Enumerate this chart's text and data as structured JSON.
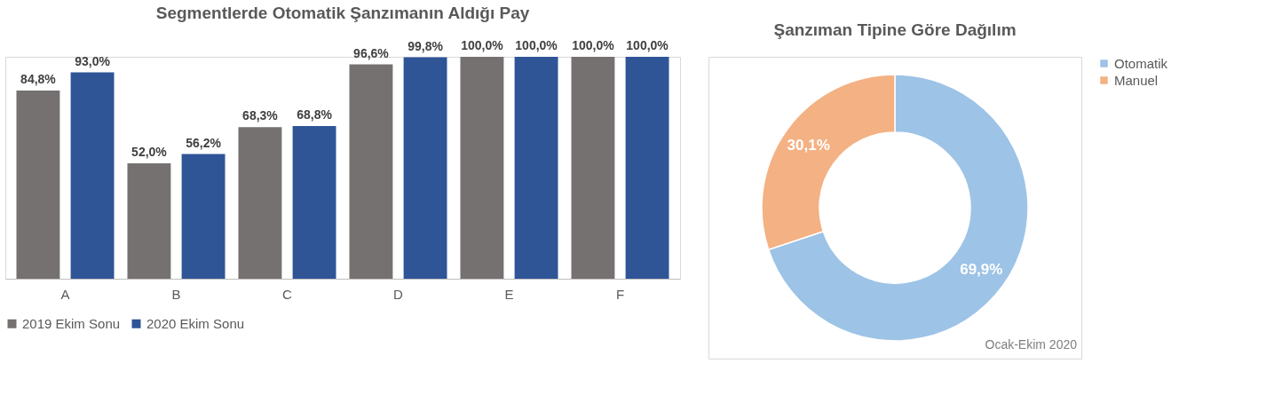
{
  "chart_data": [
    {
      "type": "bar",
      "title": "Segmentlerde Otomatik Şanzımanın Aldığı Pay",
      "categories": [
        "A",
        "B",
        "C",
        "D",
        "E",
        "F"
      ],
      "series": [
        {
          "name": "2019 Ekim Sonu",
          "color": "#767171",
          "values": [
            84.8,
            52.0,
            68.3,
            96.6,
            100.0,
            100.0
          ],
          "value_labels": [
            "84,8%",
            "52,0%",
            "68,3%",
            "96,6%",
            "100,0%",
            "100,0%"
          ]
        },
        {
          "name": "2020 Ekim Sonu",
          "color": "#2f5597",
          "values": [
            93.0,
            56.2,
            68.8,
            99.8,
            100.0,
            100.0
          ],
          "value_labels": [
            "93,0%",
            "56,2%",
            "68,8%",
            "99,8%",
            "100,0%",
            "100,0%"
          ]
        }
      ],
      "legend": "bottom",
      "grid": false
    },
    {
      "type": "donut",
      "title": "Şanzıman Tipine Göre Dağılım",
      "categories": [
        "Otomatik",
        "Manuel"
      ],
      "values": [
        69.9,
        30.1
      ],
      "colors": [
        "#9dc3e6",
        "#f4b183"
      ],
      "value_labels": [
        "69,9%",
        "30,1%"
      ],
      "legend": "right",
      "annotations": [
        "Ocak-Ekim 2020"
      ]
    }
  ]
}
